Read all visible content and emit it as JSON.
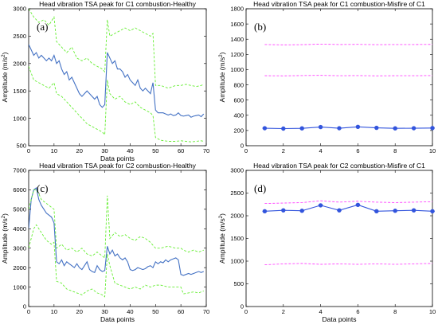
{
  "chart_data": [
    {
      "type": "line",
      "panel_label": "(a)",
      "title": "Head vibration TSA peak for C1 combustion-Healthy",
      "xlabel": "Data points",
      "ylabel_main": "Amplitude (m/s",
      "ylabel_sup": "2",
      "ylabel_end": ")",
      "xlim": [
        0,
        70
      ],
      "ylim": [
        500,
        3000
      ],
      "xticks": [
        "0",
        "10",
        "20",
        "30",
        "40",
        "50",
        "60",
        "70"
      ],
      "yticks": [
        "500",
        "1000",
        "1500",
        "2000",
        "2500",
        "3000"
      ],
      "series": [
        {
          "color": "#4472c4",
          "style": "solid",
          "markers": false,
          "x": [
            0,
            1,
            2,
            3,
            4,
            5,
            6,
            7,
            8,
            9,
            10,
            11,
            12,
            13,
            14,
            15,
            16,
            17,
            18,
            19,
            20,
            21,
            22,
            23,
            24,
            25,
            26,
            27,
            28,
            29,
            30,
            31,
            32,
            33,
            34,
            35,
            36,
            37,
            38,
            39,
            40,
            41,
            42,
            43,
            44,
            45,
            46,
            47,
            48,
            49,
            50,
            51,
            52,
            53,
            54,
            55,
            56,
            57,
            58,
            59,
            60,
            61,
            62,
            63,
            64,
            65,
            66,
            67,
            68,
            69
          ],
          "y": [
            2350,
            2250,
            2150,
            2200,
            2100,
            2150,
            2100,
            2050,
            2100,
            2050,
            2150,
            2000,
            2050,
            1900,
            1800,
            1850,
            1700,
            1750,
            1650,
            1550,
            1450,
            1400,
            1450,
            1500,
            1450,
            1400,
            1350,
            1400,
            1250,
            1200,
            1250,
            2200,
            2100,
            2000,
            2050,
            1900,
            1900,
            1850,
            1750,
            1800,
            1700,
            1650,
            1600,
            1700,
            1550,
            1500,
            1550,
            1500,
            1450,
            1650,
            1150,
            1100,
            1100,
            1100,
            1080,
            1060,
            1080,
            1050,
            1060,
            1100,
            1050,
            1040,
            1050,
            1060,
            1020,
            1040,
            1050,
            1060,
            1030,
            1080
          ]
        },
        {
          "color": "#66ee33",
          "style": "dashed",
          "markers": false,
          "x": [
            0,
            2,
            4,
            6,
            8,
            10,
            11,
            13,
            15,
            17,
            19,
            21,
            23,
            25,
            27,
            29,
            30,
            31,
            32,
            34,
            36,
            38,
            40,
            42,
            44,
            46,
            48,
            49,
            50,
            52,
            55,
            58,
            60,
            62,
            64,
            66,
            68,
            69
          ],
          "y": [
            3000,
            2850,
            2750,
            2800,
            2700,
            2850,
            2400,
            2300,
            2200,
            2300,
            2100,
            2050,
            2100,
            2000,
            1950,
            1900,
            1850,
            2800,
            2500,
            2550,
            2600,
            2650,
            2600,
            2650,
            2600,
            2550,
            2500,
            2550,
            1600,
            1600,
            1550,
            1600,
            1600,
            1620,
            1600,
            1580,
            1600,
            1620
          ]
        },
        {
          "color": "#66ee33",
          "style": "dashed",
          "markers": false,
          "x": [
            0,
            2,
            4,
            6,
            8,
            10,
            11,
            13,
            15,
            17,
            19,
            21,
            23,
            25,
            27,
            29,
            30,
            31,
            32,
            34,
            36,
            38,
            40,
            42,
            44,
            46,
            48,
            49,
            50,
            52,
            55,
            58,
            60,
            62,
            64,
            66,
            68,
            69
          ],
          "y": [
            1950,
            1700,
            1650,
            1600,
            1550,
            1650,
            1450,
            1400,
            1300,
            1200,
            1100,
            1000,
            900,
            850,
            800,
            750,
            700,
            1700,
            1450,
            1350,
            1400,
            1300,
            1250,
            1300,
            1200,
            1150,
            1100,
            1050,
            650,
            600,
            580,
            580,
            590,
            580,
            570,
            580,
            590,
            580
          ]
        }
      ]
    },
    {
      "type": "line",
      "panel_label": "(b)",
      "title": "Head vibration TSA peak for C1 combustion-Misfire of C1",
      "xlabel": "",
      "ylabel_main": "Amplitude (m/s",
      "ylabel_sup": "2",
      "ylabel_end": ")",
      "xlim": [
        0,
        10
      ],
      "ylim": [
        0,
        1800
      ],
      "xticks": [
        "0",
        "2",
        "4",
        "6",
        "8",
        "10"
      ],
      "yticks": [
        "0",
        "200",
        "400",
        "600",
        "800",
        "1000",
        "1200",
        "1400",
        "1600",
        "1800"
      ],
      "series": [
        {
          "color": "#3355dd",
          "style": "solid",
          "markers": true,
          "x": [
            1,
            2,
            3,
            4,
            5,
            6,
            7,
            8,
            9,
            10
          ],
          "y": [
            230,
            225,
            228,
            245,
            230,
            248,
            235,
            228,
            230,
            232
          ]
        },
        {
          "color": "#ff44ff",
          "style": "dashed",
          "markers": false,
          "x": [
            1,
            2,
            3,
            4,
            5,
            6,
            7,
            8,
            9,
            10
          ],
          "y": [
            1330,
            1325,
            1328,
            1335,
            1330,
            1332,
            1328,
            1330,
            1330,
            1332
          ]
        },
        {
          "color": "#ff44ff",
          "style": "dashed",
          "markers": false,
          "x": [
            1,
            2,
            3,
            4,
            5,
            6,
            7,
            8,
            9,
            10
          ],
          "y": [
            920,
            918,
            922,
            925,
            920,
            922,
            918,
            920,
            920,
            922
          ]
        }
      ]
    },
    {
      "type": "line",
      "panel_label": "(c)",
      "title": "Head vibration TSA peak for C2 combustion-Healthy",
      "xlabel": "Data points",
      "ylabel_main": "Amplitude (m/s",
      "ylabel_sup": "2",
      "ylabel_end": ")",
      "xlim": [
        0,
        70
      ],
      "ylim": [
        0,
        7000
      ],
      "xticks": [
        "0",
        "10",
        "20",
        "30",
        "40",
        "50",
        "60",
        "70"
      ],
      "yticks": [
        "0",
        "1000",
        "2000",
        "3000",
        "4000",
        "5000",
        "6000",
        "7000"
      ],
      "series": [
        {
          "color": "#4472c4",
          "style": "solid",
          "markers": false,
          "x": [
            0,
            1,
            2,
            3,
            4,
            5,
            6,
            7,
            8,
            9,
            10,
            11,
            12,
            13,
            14,
            15,
            16,
            17,
            18,
            19,
            20,
            21,
            22,
            23,
            24,
            25,
            26,
            27,
            28,
            29,
            30,
            31,
            32,
            33,
            34,
            35,
            36,
            37,
            38,
            39,
            40,
            41,
            42,
            43,
            44,
            45,
            46,
            47,
            48,
            49,
            50,
            51,
            52,
            53,
            54,
            55,
            56,
            57,
            58,
            59,
            60,
            61,
            62,
            63,
            64,
            65,
            66,
            67,
            68,
            69
          ],
          "y": [
            4000,
            5500,
            6000,
            6100,
            5500,
            5200,
            5000,
            4800,
            4700,
            4600,
            4300,
            2300,
            2200,
            2400,
            2100,
            2300,
            2200,
            2100,
            2000,
            2200,
            2000,
            1900,
            2100,
            2300,
            1900,
            1800,
            1750,
            2100,
            1900,
            1800,
            1850,
            3100,
            2700,
            2900,
            2600,
            2700,
            2500,
            2400,
            2500,
            2300,
            1900,
            1850,
            1900,
            2000,
            1950,
            1900,
            1950,
            2050,
            2100,
            2000,
            2300,
            2200,
            2300,
            2250,
            2400,
            2300,
            2400,
            2450,
            2500,
            2400,
            1650,
            1600,
            1650,
            1700,
            1650,
            1700,
            1750,
            1800,
            1750,
            1800
          ]
        },
        {
          "color": "#66ee33",
          "style": "dashed",
          "markers": false,
          "x": [
            0,
            1,
            2,
            3,
            4,
            5,
            6,
            7,
            8,
            9,
            10,
            11,
            13,
            15,
            17,
            19,
            21,
            23,
            25,
            27,
            29,
            30,
            31,
            32,
            34,
            36,
            38,
            40,
            42,
            44,
            46,
            48,
            50,
            52,
            55,
            58,
            60,
            61,
            63,
            65,
            67,
            69
          ],
          "y": [
            5000,
            5500,
            6000,
            6000,
            5800,
            5500,
            5400,
            5300,
            5200,
            5100,
            5000,
            3000,
            3200,
            2900,
            3000,
            2800,
            3000,
            2700,
            2600,
            2800,
            2600,
            2500,
            5700,
            3500,
            3800,
            3600,
            3700,
            3500,
            3400,
            3600,
            3500,
            3300,
            3000,
            3000,
            3100,
            3000,
            3000,
            2900,
            2800,
            2900,
            2800,
            2900
          ]
        },
        {
          "color": "#66ee33",
          "style": "dashed",
          "markers": false,
          "x": [
            0,
            1,
            2,
            3,
            4,
            5,
            6,
            7,
            8,
            9,
            10,
            11,
            13,
            15,
            17,
            19,
            21,
            23,
            25,
            27,
            29,
            30,
            31,
            32,
            34,
            36,
            38,
            40,
            42,
            44,
            46,
            48,
            50,
            52,
            55,
            58,
            60,
            61,
            63,
            65,
            67,
            69
          ],
          "y": [
            3000,
            3500,
            4000,
            4200,
            4000,
            3800,
            3600,
            3400,
            3300,
            3200,
            3300,
            1300,
            1200,
            900,
            800,
            700,
            600,
            800,
            900,
            700,
            600,
            500,
            2700,
            2100,
            1200,
            1100,
            1000,
            900,
            1000,
            900,
            1100,
            1000,
            1100,
            1100,
            1000,
            1000,
            1000,
            650,
            700,
            750,
            700,
            800
          ]
        }
      ]
    },
    {
      "type": "line",
      "panel_label": "(d)",
      "title": "Head vibration TSA peak for C2 combustion-Misfire of C1",
      "xlabel": "Data points",
      "ylabel_main": "Amplitude (m/s",
      "ylabel_sup": "2",
      "ylabel_end": ")",
      "xlim": [
        0,
        10
      ],
      "ylim": [
        0,
        3000
      ],
      "xticks": [
        "0",
        "2",
        "4",
        "6",
        "8",
        "10"
      ],
      "yticks": [
        "0",
        "500",
        "1000",
        "1500",
        "2000",
        "2500",
        "3000"
      ],
      "series": [
        {
          "color": "#3355dd",
          "style": "solid",
          "markers": true,
          "x": [
            1,
            2,
            3,
            4,
            5,
            6,
            7,
            8,
            9,
            10
          ],
          "y": [
            2100,
            2120,
            2110,
            2230,
            2120,
            2240,
            2100,
            2110,
            2120,
            2100
          ]
        },
        {
          "color": "#ff44ff",
          "style": "dashed",
          "markers": false,
          "x": [
            1,
            2,
            3,
            4,
            5,
            6,
            7,
            8,
            9,
            10
          ],
          "y": [
            2270,
            2280,
            2290,
            2330,
            2300,
            2320,
            2300,
            2290,
            2300,
            2310
          ]
        },
        {
          "color": "#ff44ff",
          "style": "dashed",
          "markers": false,
          "x": [
            1,
            2,
            3,
            4,
            5,
            6,
            7,
            8,
            9,
            10
          ],
          "y": [
            920,
            940,
            950,
            930,
            940,
            930,
            940,
            930,
            940,
            950
          ]
        }
      ]
    }
  ]
}
